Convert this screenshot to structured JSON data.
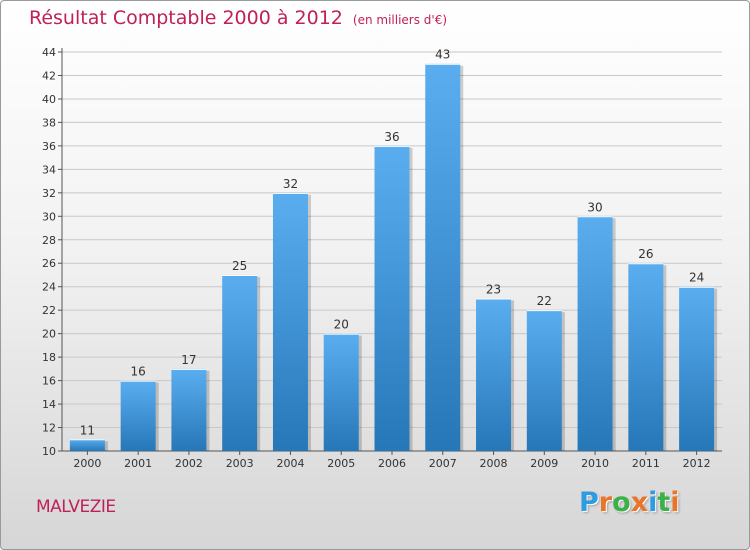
{
  "chart_data": {
    "type": "bar",
    "title": "Résultat Comptable 2000 à 2012",
    "subtitle": "(en milliers d'€)",
    "categories": [
      "2000",
      "2001",
      "2002",
      "2003",
      "2004",
      "2005",
      "2006",
      "2007",
      "2008",
      "2009",
      "2010",
      "2011",
      "2012"
    ],
    "values": [
      11,
      16,
      17,
      25,
      32,
      20,
      36,
      43,
      23,
      22,
      30,
      26,
      24
    ],
    "ylim": [
      10,
      44
    ],
    "yticks": [
      10,
      12,
      14,
      16,
      18,
      20,
      22,
      24,
      26,
      28,
      30,
      32,
      34,
      36,
      38,
      40,
      42,
      44
    ],
    "grid": true,
    "xlabel": "",
    "ylabel": "",
    "bar_color_top": "#5aaef0",
    "bar_color_bottom": "#2677b8"
  },
  "commune": "MALVEZIE",
  "logo": {
    "letters": [
      "P",
      "r",
      "o",
      "x",
      "i",
      "t",
      "i"
    ],
    "colors": [
      "#2f9be0",
      "#e8752a",
      "#3db04a",
      "#e8752a",
      "#2f9be0",
      "#3db04a",
      "#e8752a"
    ]
  },
  "accent_color": "#c0205a"
}
